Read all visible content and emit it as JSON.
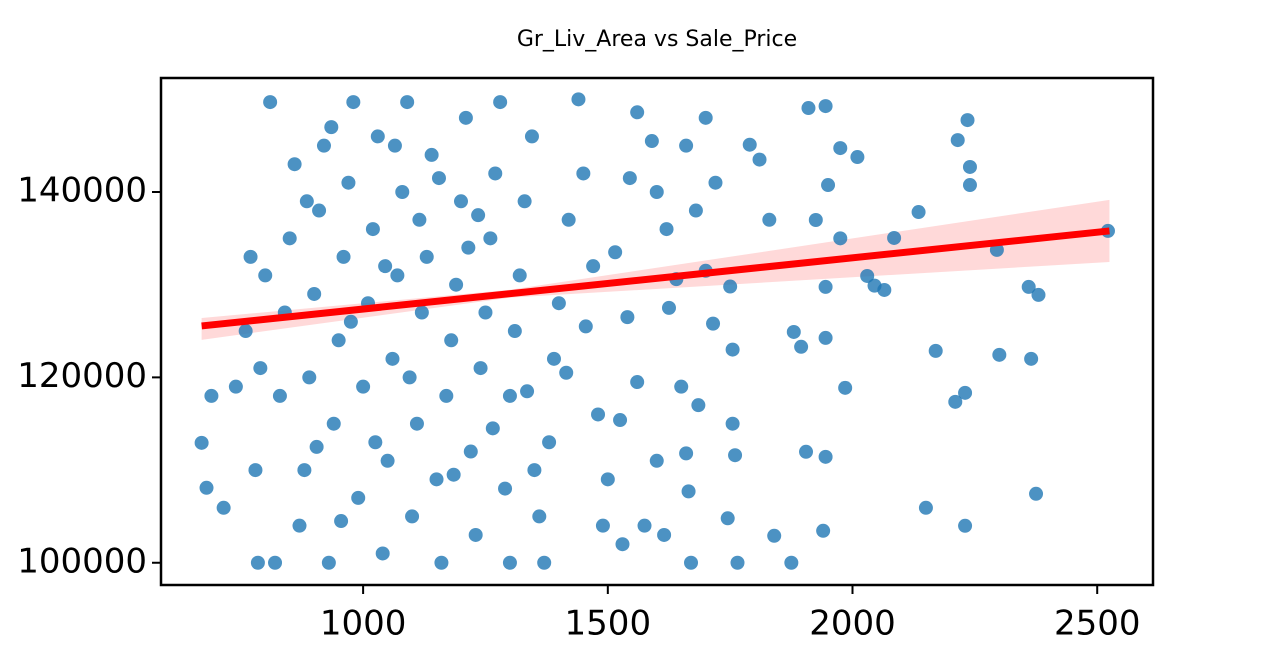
{
  "chart_data": {
    "type": "scatter",
    "title": "Gr_Liv_Area vs Sale_Price",
    "color": "#1f77b4",
    "fit_color": "#ff0000",
    "xlim": [
      587,
      2614
    ],
    "ylim": [
      97600,
      152300
    ],
    "xticks": [
      1000,
      1500,
      2000,
      2500
    ],
    "yticks": [
      100000,
      120000,
      140000
    ],
    "x": [
      2522,
      2380,
      2360,
      2375,
      2365,
      2295,
      2300,
      2240,
      2235,
      2215,
      2240,
      2230,
      2210,
      2230,
      2170,
      2150,
      2135,
      2085,
      2065,
      2045,
      2030,
      2010,
      1975,
      1950,
      1945,
      1910,
      1925,
      1975,
      1945,
      1945,
      1895,
      1880,
      1985,
      1945,
      1905,
      1940,
      1875,
      1840,
      1765,
      1745,
      1760,
      1755,
      1830,
      1810,
      1790,
      1750,
      1755,
      1715,
      1700,
      1720,
      1700,
      1680,
      1660,
      1650,
      1670,
      1665,
      1660,
      1640,
      1620,
      1600,
      1590,
      1560,
      1540,
      1525,
      1560,
      1600,
      1575,
      1530,
      1490,
      1500,
      1480,
      1470,
      1450,
      1440,
      1420,
      1400,
      1390,
      1380,
      1370,
      1360,
      1350,
      1345,
      1330,
      1320,
      1310,
      1300,
      1300,
      1290,
      1280,
      1270,
      1260,
      1250,
      1240,
      1230,
      1220,
      1210,
      1200,
      1190,
      1180,
      1170,
      1160,
      1150,
      1140,
      1130,
      1120,
      1110,
      1100,
      1090,
      1080,
      1070,
      1060,
      1050,
      1040,
      1030,
      1020,
      1010,
      1000,
      990,
      980,
      970,
      960,
      950,
      940,
      930,
      920,
      910,
      900,
      890,
      880,
      870,
      860,
      850,
      840,
      830,
      820,
      810,
      800,
      790,
      780,
      770,
      760,
      690,
      680,
      670,
      715,
      740,
      785,
      1115,
      1065,
      1025,
      955,
      905,
      1185,
      1235,
      1265,
      1335,
      1415,
      1455,
      1515,
      1545,
      1625,
      1685,
      1615,
      1095,
      1045,
      975,
      885,
      935,
      1155,
      1215
    ],
    "y": [
      135800,
      128900,
      129760,
      107440,
      122000,
      133750,
      122430,
      140750,
      147760,
      145600,
      142700,
      118330,
      117360,
      103990,
      122860,
      105930,
      137840,
      135040,
      129430,
      129900,
      130940,
      143770,
      144740,
      140750,
      149270,
      149060,
      136980,
      135000,
      129760,
      124260,
      123300,
      124900,
      118870,
      111430,
      111970,
      103450,
      100000,
      102910,
      100000,
      104800,
      111600,
      115000,
      137000,
      143500,
      145100,
      129800,
      123000,
      125800,
      131500,
      141000,
      148000,
      138000,
      145000,
      119000,
      100000,
      107700,
      111800,
      130600,
      136000,
      140000,
      145500,
      148600,
      126500,
      115400,
      119500,
      111000,
      104000,
      102000,
      104000,
      109000,
      116000,
      132000,
      142000,
      150000,
      137000,
      128000,
      122000,
      113000,
      100000,
      105000,
      110000,
      146000,
      139000,
      131000,
      125000,
      118000,
      100000,
      108000,
      149700,
      142000,
      135000,
      127000,
      121000,
      103000,
      112000,
      148000,
      139000,
      130000,
      124000,
      118000,
      100000,
      109000,
      144000,
      133000,
      127000,
      115000,
      105000,
      149700,
      140000,
      131000,
      122000,
      111000,
      101000,
      146000,
      136000,
      128000,
      119000,
      107000,
      149700,
      141000,
      133000,
      124000,
      115000,
      100000,
      145000,
      138000,
      129000,
      120000,
      110000,
      104000,
      143000,
      135000,
      127000,
      118000,
      100000,
      149700,
      131000,
      121000,
      110000,
      133000,
      125000,
      118000,
      108090,
      112940,
      105930,
      119000,
      100000,
      137000,
      145000,
      113000,
      104500,
      112500,
      109500,
      137500,
      114500,
      118500,
      120500,
      125500,
      133500,
      141500,
      127500,
      117000,
      103000,
      120000,
      132000,
      126000,
      139000,
      147000,
      141500,
      134000
    ],
    "fit": {
      "x": [
        670,
        2525
      ],
      "y": [
        125550,
        135800
      ]
    },
    "ci": {
      "x": [
        670,
        1300,
        2525
      ],
      "upper": [
        126400,
        129450,
        139150
      ],
      "lower": [
        124050,
        128600,
        132450
      ]
    }
  }
}
